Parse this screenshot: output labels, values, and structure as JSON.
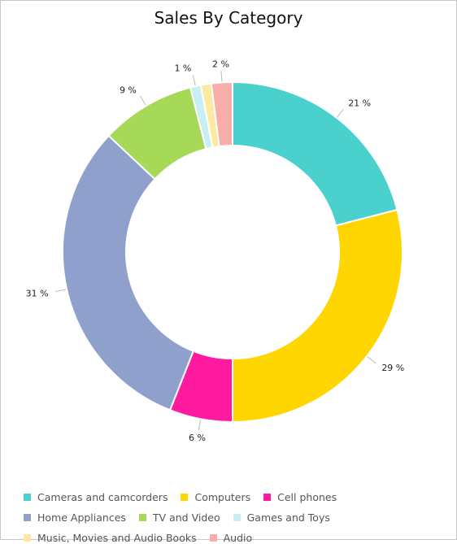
{
  "chart_data": {
    "type": "pie",
    "variant": "donut",
    "title": "Sales By Category",
    "label_suffix": " %",
    "legend_position": "bottom",
    "slices": [
      {
        "name": "Cameras and camcorders",
        "value": 21,
        "label": "21 %",
        "color": "#4ad1cd"
      },
      {
        "name": "Computers",
        "value": 29,
        "label": "29 %",
        "color": "#ffd600"
      },
      {
        "name": "Cell phones",
        "value": 6,
        "label": "6 %",
        "color": "#ff1aa0"
      },
      {
        "name": "Home Appliances",
        "value": 31,
        "label": "31 %",
        "color": "#8fa0cc"
      },
      {
        "name": "TV and Video",
        "value": 9,
        "label": "9 %",
        "color": "#a6d957"
      },
      {
        "name": "Games and Toys",
        "value": 1,
        "label": "1 %",
        "color": "#c8eff1"
      },
      {
        "name": "Music, Movies and Audio Books",
        "value": 1,
        "label": "",
        "color": "#fde9a0"
      },
      {
        "name": "Audio",
        "value": 2,
        "label": "2 %",
        "color": "#f9adab"
      }
    ]
  }
}
